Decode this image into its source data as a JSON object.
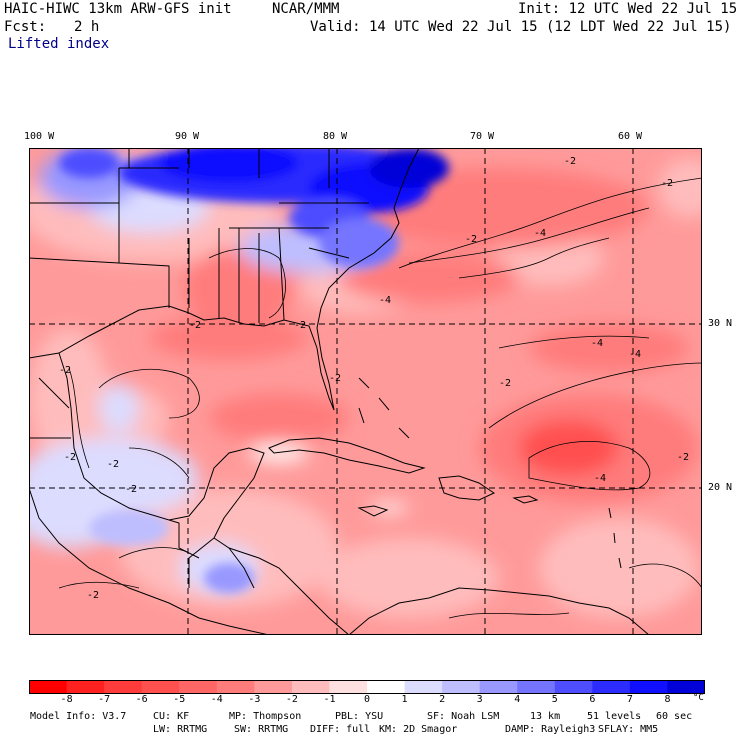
{
  "header": {
    "model": "HAIC-HIWC 13km ARW-GFS init",
    "org": "NCAR/MMM",
    "init": "Init: 12 UTC Wed 22 Jul 15",
    "fcst_label": "Fcst:",
    "fcst_value": "2 h",
    "valid": "Valid: 14 UTC Wed 22 Jul 15 (12 LDT Wed 22 Jul 15)",
    "field": "Lifted index"
  },
  "map": {
    "lon_labels": [
      "100 W",
      "90 W",
      "80 W",
      "70 W",
      "60 W"
    ],
    "lat_labels": [
      "30 N",
      "20 N"
    ],
    "contour_labels": [
      "-2",
      "-2",
      "-4",
      "-2",
      "-2",
      "-4",
      "-4",
      "-4",
      "-2",
      "-2",
      "-2",
      "-2",
      "-2",
      "-2",
      "-2",
      "-4",
      "-2",
      "-2"
    ]
  },
  "colorbar": {
    "labels": [
      "-8",
      "-7",
      "-6",
      "-5",
      "-4",
      "-3",
      "-2",
      "-1",
      "0",
      "1",
      "2",
      "3",
      "4",
      "5",
      "6",
      "7",
      "8"
    ],
    "unit": "°C",
    "colors": [
      "#ff0000",
      "#ff2020",
      "#ff3c3c",
      "#ff5050",
      "#ff6666",
      "#ff7c7c",
      "#ff9a9a",
      "#ffbcbc",
      "#ffe0e0",
      "#ffffff",
      "#dcdcff",
      "#bebeff",
      "#9898ff",
      "#7474ff",
      "#4e4eff",
      "#2c2cff",
      "#1010ff",
      "#0000d8"
    ]
  },
  "footer": {
    "line1": [
      "Model Info: V3.7",
      "CU: KF",
      "MP: Thompson",
      "PBL: YSU",
      "SF: Noah LSM",
      "13 km",
      "51 levels",
      "60 sec"
    ],
    "line2": [
      "LW: RRTMG",
      "SW: RRTMG",
      "DIFF: full",
      "KM: 2D Smagor",
      "DAMP: Rayleigh3",
      "SFLAY: MM5"
    ]
  }
}
